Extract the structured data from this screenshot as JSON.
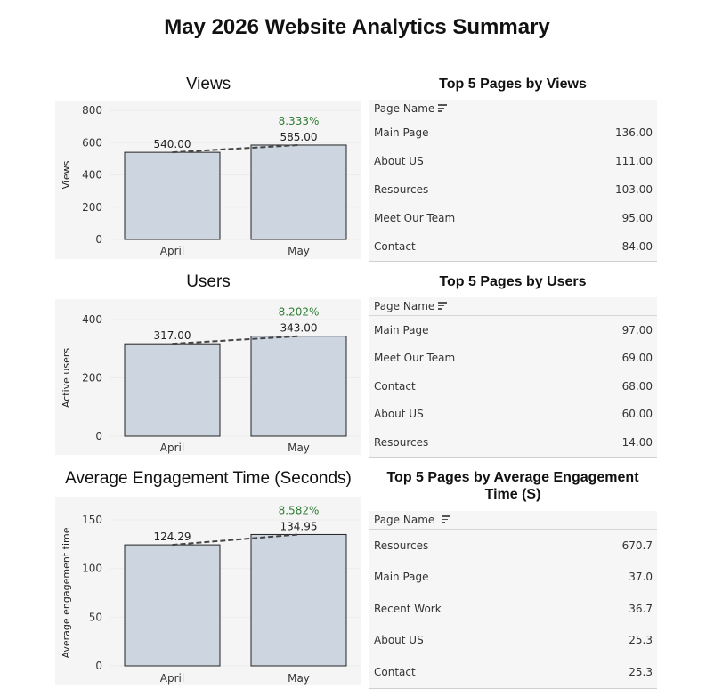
{
  "title": "May 2026 Website Analytics Summary",
  "chart_data": [
    {
      "type": "bar",
      "title": "Views",
      "ylabel": "Views",
      "xlabel": "",
      "categories": [
        "April",
        "May"
      ],
      "values": [
        540.0,
        585.0
      ],
      "value_labels": [
        "540.00",
        "585.00"
      ],
      "change_label": "8.333%",
      "ylim": [
        0,
        800
      ],
      "yticks": [
        0,
        200,
        400,
        600,
        800
      ],
      "bar_color": "#cdd5e0",
      "change_color": "#2e7d32"
    },
    {
      "type": "bar",
      "title": "Users",
      "ylabel": "Active users",
      "xlabel": "",
      "categories": [
        "April",
        "May"
      ],
      "values": [
        317.0,
        343.0
      ],
      "value_labels": [
        "317.00",
        "343.00"
      ],
      "change_label": "8.202%",
      "ylim": [
        0,
        400
      ],
      "yticks": [
        0,
        200,
        400
      ],
      "bar_color": "#cdd5e0",
      "change_color": "#2e7d32"
    },
    {
      "type": "bar",
      "title": "Average Engagement Time (Seconds)",
      "ylabel": "Average engagement time",
      "xlabel": "",
      "categories": [
        "April",
        "May"
      ],
      "values": [
        124.29,
        134.95
      ],
      "value_labels": [
        "124.29",
        "134.95"
      ],
      "change_label": "8.582%",
      "ylim": [
        0,
        150
      ],
      "yticks": [
        0,
        50,
        100,
        150
      ],
      "bar_color": "#cdd5e0",
      "change_color": "#2e7d32"
    }
  ],
  "tables": [
    {
      "title": "Top 5 Pages by Views",
      "column": "Page Name",
      "rows": [
        {
          "name": "Main Page",
          "value": "136.00"
        },
        {
          "name": "About US",
          "value": "111.00"
        },
        {
          "name": "Resources",
          "value": "103.00"
        },
        {
          "name": "Meet Our Team",
          "value": "95.00"
        },
        {
          "name": "Contact",
          "value": "84.00"
        }
      ]
    },
    {
      "title": "Top 5 Pages by Users",
      "column": "Page Name",
      "rows": [
        {
          "name": "Main Page",
          "value": "97.00"
        },
        {
          "name": "Meet Our Team",
          "value": "69.00"
        },
        {
          "name": "Contact",
          "value": "68.00"
        },
        {
          "name": "About US",
          "value": "60.00"
        },
        {
          "name": "Resources",
          "value": "14.00"
        }
      ]
    },
    {
      "title": "Top 5 Pages by Average Engagement Time (S)",
      "column": "Page Name",
      "rows": [
        {
          "name": "Resources",
          "value": "670.7"
        },
        {
          "name": "Main Page",
          "value": "37.0"
        },
        {
          "name": "Recent Work",
          "value": "36.7"
        },
        {
          "name": "About US",
          "value": "25.3"
        },
        {
          "name": "Contact",
          "value": "25.3"
        }
      ]
    }
  ]
}
